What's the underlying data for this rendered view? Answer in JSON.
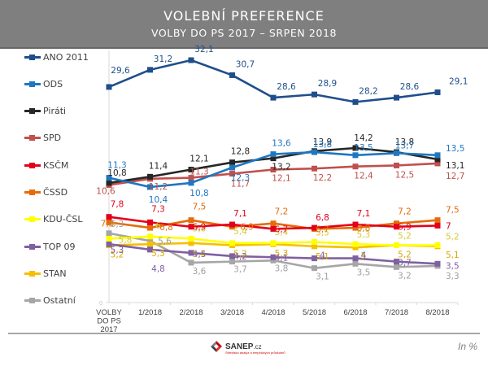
{
  "header": {
    "title": "VOLEBNÍ PREFERENCE",
    "subtitle": "VOLBY DO PS 2017 – SRPEN 2018"
  },
  "footer": {
    "logo_name": "SANEP",
    "logo_suffix": ".cz",
    "logo_tagline": "Středisko analýz a empirických průzkumů",
    "unit_label": "In %"
  },
  "chart_data": {
    "type": "line",
    "title": "VOLEBNÍ PREFERENCE",
    "subtitle": "VOLBY DO PS 2017 – SRPEN 2018",
    "xlabel": "",
    "ylabel": "",
    "unit": "%",
    "y_tick_labels": [
      "0"
    ],
    "grid": false,
    "legend_position": "left",
    "categories": [
      "VOLBY DO PS 2017",
      "1/2018",
      "2/2018",
      "3/2018",
      "4/2018",
      "5/2018",
      "6/2018",
      "7/2018",
      "8/2018"
    ],
    "series": [
      {
        "name": "ANO 2011",
        "color": "#1f4e8c",
        "values": [
          29.6,
          31.2,
          32.1,
          30.7,
          28.6,
          28.9,
          28.2,
          28.6,
          29.1
        ],
        "labels": [
          "29,6",
          "31,2",
          "32,1",
          "30,7",
          "28,6",
          "28,9",
          "28,2",
          "28,6",
          "29,1"
        ]
      },
      {
        "name": "ODS",
        "color": "#1f77c0",
        "values": [
          11.3,
          10.4,
          10.8,
          12.3,
          13.6,
          13.8,
          13.5,
          13.7,
          13.5
        ],
        "labels": [
          "11,3",
          "10,4",
          "10,8",
          "12,3",
          "13,6",
          "13,8",
          "13,5",
          "13,7",
          "13,5"
        ]
      },
      {
        "name": "Piráti",
        "color": "#262626",
        "values": [
          10.8,
          11.4,
          12.1,
          12.8,
          13.2,
          13.9,
          14.2,
          13.8,
          13.1
        ],
        "labels": [
          "10,8",
          "11,4",
          "12,1",
          "12,8",
          "13,2",
          "13,9",
          "14,2",
          "13,8",
          "13,1"
        ]
      },
      {
        "name": "SPD",
        "color": "#c0504d",
        "values": [
          10.6,
          11.2,
          11.3,
          11.7,
          12.1,
          12.2,
          12.4,
          12.5,
          12.7
        ],
        "labels": [
          "10,6",
          "11,2",
          "11,3",
          "11,7",
          "12,1",
          "12,2",
          "12,4",
          "12,5",
          "12,7"
        ]
      },
      {
        "name": "KSČM",
        "color": "#e3001b",
        "values": [
          7.8,
          7.3,
          6.9,
          7.1,
          6.7,
          6.8,
          7.1,
          6.9,
          7
        ],
        "labels": [
          "7,8",
          "7,3",
          "6,9",
          "7,1",
          "6,7",
          "6,8",
          "7,1",
          "6,9",
          "7"
        ]
      },
      {
        "name": "ČSSD",
        "color": "#e46c0a",
        "values": [
          7.3,
          6.8,
          7.5,
          6.9,
          7.2,
          6.7,
          6.8,
          7.2,
          7.5
        ],
        "labels": [
          "7,3",
          "6,8",
          "7,5",
          "6,9",
          "7,2",
          "6,7",
          "6,8",
          "7,2",
          "7,5"
        ]
      },
      {
        "name": "KDU-ČSL",
        "color": "#ffff00",
        "values": [
          5.8,
          6,
          5.8,
          5.4,
          5.4,
          5.5,
          5.3,
          5.2,
          5.2
        ],
        "labels": [
          "5,8",
          "6",
          "5,8",
          "5,4",
          "5,4",
          "5,5",
          "5,3",
          "5,2",
          "5,2"
        ]
      },
      {
        "name": "TOP 09",
        "color": "#7f60a0",
        "values": [
          5.3,
          4.8,
          4.5,
          4.2,
          4.1,
          4,
          4,
          3.7,
          3.5
        ],
        "labels": [
          "5,3",
          "4,8",
          "4,5",
          "4,2",
          "4,1",
          "4",
          "4",
          "3,7",
          "3,5"
        ]
      },
      {
        "name": "STAN",
        "color": "#f5c000",
        "values": [
          5.2,
          5.3,
          5.4,
          5.2,
          5.3,
          5.1,
          5,
          5.2,
          5.1
        ],
        "labels": [
          "5,2",
          "5,3",
          "5,4",
          "5,2",
          "5,3",
          "5,1",
          "5",
          "5,2",
          "5,1"
        ]
      },
      {
        "name": "Ostatní",
        "color": "#a6a6a6",
        "values": [
          6.3,
          5.6,
          3.6,
          3.7,
          3.8,
          3.1,
          3.5,
          3.2,
          3.3
        ],
        "labels": [
          "6,3",
          "5,6",
          "3,6",
          "3,7",
          "3,8",
          "3,1",
          "3,5",
          "3,2",
          "3,3"
        ]
      }
    ]
  }
}
